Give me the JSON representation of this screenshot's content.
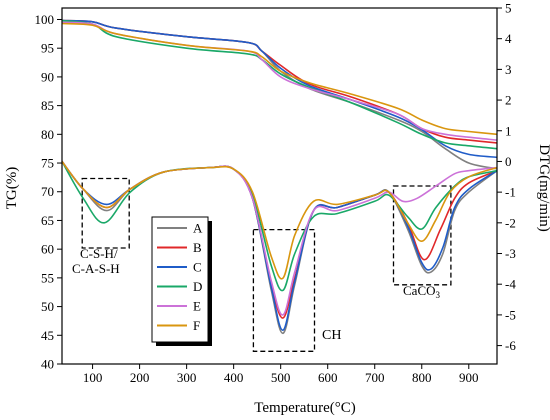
{
  "chart_data": {
    "type": "line",
    "xlabel": "Temperature(°C)",
    "ylabel_left": "TG(%)",
    "ylabel_right": "DTG(mg/min)",
    "xlim": [
      35,
      960
    ],
    "ylim_left": [
      40,
      102
    ],
    "ylim_right": [
      -6.6,
      5
    ],
    "x_ticks": [
      100,
      200,
      300,
      400,
      500,
      600,
      700,
      800,
      900
    ],
    "y_left_ticks": [
      40,
      45,
      50,
      55,
      60,
      65,
      70,
      75,
      80,
      85,
      90,
      95,
      100
    ],
    "y_right_ticks": [
      -6,
      -5,
      -4,
      -3,
      -2,
      -1,
      0,
      1,
      2,
      3,
      4,
      5
    ],
    "legend": {
      "placement": "lower-left-center",
      "entries": [
        "A",
        "B",
        "C",
        "D",
        "E",
        "F"
      ]
    },
    "annotations": {
      "csh": [
        "C-S-H/",
        "C-A-S-H"
      ],
      "ch": "CH",
      "caco3": "CaCO",
      "caco3_sub": "3"
    },
    "series": [
      {
        "name": "A",
        "color": "#808080",
        "tg": [
          [
            35,
            99.8
          ],
          [
            100,
            99.6
          ],
          [
            150,
            98.5
          ],
          [
            300,
            97.0
          ],
          [
            430,
            96.0
          ],
          [
            460,
            94.5
          ],
          [
            500,
            91.0
          ],
          [
            560,
            88.0
          ],
          [
            650,
            85.5
          ],
          [
            750,
            82.5
          ],
          [
            800,
            80.5
          ],
          [
            850,
            77.5
          ],
          [
            900,
            75.0
          ],
          [
            960,
            74.0
          ]
        ],
        "dtg": [
          [
            35,
            0.0
          ],
          [
            80,
            -0.9
          ],
          [
            130,
            -1.6
          ],
          [
            180,
            -0.9
          ],
          [
            250,
            -0.35
          ],
          [
            350,
            -0.2
          ],
          [
            400,
            -0.25
          ],
          [
            440,
            -1.2
          ],
          [
            480,
            -4.2
          ],
          [
            505,
            -5.6
          ],
          [
            530,
            -4.0
          ],
          [
            570,
            -1.6
          ],
          [
            620,
            -1.5
          ],
          [
            700,
            -1.1
          ],
          [
            730,
            -1.0
          ],
          [
            770,
            -2.2
          ],
          [
            800,
            -3.4
          ],
          [
            820,
            -3.6
          ],
          [
            845,
            -3.0
          ],
          [
            870,
            -1.6
          ],
          [
            900,
            -1.0
          ],
          [
            960,
            -0.3
          ]
        ]
      },
      {
        "name": "B",
        "color": "#e0282a",
        "tg": [
          [
            35,
            99.8
          ],
          [
            100,
            99.6
          ],
          [
            150,
            98.5
          ],
          [
            300,
            97.0
          ],
          [
            430,
            96.0
          ],
          [
            460,
            94.5
          ],
          [
            500,
            92.0
          ],
          [
            560,
            88.8
          ],
          [
            650,
            86.5
          ],
          [
            750,
            83.5
          ],
          [
            800,
            81.0
          ],
          [
            850,
            79.5
          ],
          [
            900,
            79.0
          ],
          [
            960,
            78.5
          ]
        ],
        "dtg": [
          [
            35,
            0.0
          ],
          [
            80,
            -0.9
          ],
          [
            130,
            -1.5
          ],
          [
            180,
            -0.9
          ],
          [
            250,
            -0.35
          ],
          [
            350,
            -0.2
          ],
          [
            400,
            -0.25
          ],
          [
            440,
            -1.2
          ],
          [
            480,
            -4.0
          ],
          [
            505,
            -5.1
          ],
          [
            530,
            -3.8
          ],
          [
            570,
            -1.6
          ],
          [
            620,
            -1.5
          ],
          [
            700,
            -1.1
          ],
          [
            730,
            -1.0
          ],
          [
            770,
            -2.0
          ],
          [
            805,
            -3.2
          ],
          [
            840,
            -2.2
          ],
          [
            870,
            -1.2
          ],
          [
            900,
            -0.7
          ],
          [
            960,
            -0.3
          ]
        ]
      },
      {
        "name": "C",
        "color": "#1f5cc8",
        "tg": [
          [
            35,
            99.8
          ],
          [
            100,
            99.6
          ],
          [
            150,
            98.5
          ],
          [
            300,
            97.0
          ],
          [
            430,
            96.0
          ],
          [
            460,
            94.5
          ],
          [
            500,
            91.5
          ],
          [
            560,
            88.5
          ],
          [
            650,
            86.0
          ],
          [
            750,
            83.0
          ],
          [
            800,
            80.8
          ],
          [
            850,
            78.0
          ],
          [
            900,
            76.5
          ],
          [
            960,
            76.0
          ]
        ],
        "dtg": [
          [
            35,
            0.0
          ],
          [
            80,
            -0.9
          ],
          [
            130,
            -1.4
          ],
          [
            180,
            -0.9
          ],
          [
            250,
            -0.35
          ],
          [
            350,
            -0.2
          ],
          [
            400,
            -0.25
          ],
          [
            440,
            -1.2
          ],
          [
            480,
            -4.1
          ],
          [
            505,
            -5.5
          ],
          [
            530,
            -3.9
          ],
          [
            570,
            -1.6
          ],
          [
            620,
            -1.5
          ],
          [
            700,
            -1.1
          ],
          [
            730,
            -1.0
          ],
          [
            770,
            -2.1
          ],
          [
            800,
            -3.3
          ],
          [
            820,
            -3.5
          ],
          [
            845,
            -2.8
          ],
          [
            870,
            -1.5
          ],
          [
            900,
            -0.9
          ],
          [
            960,
            -0.3
          ]
        ]
      },
      {
        "name": "D",
        "color": "#1aa868",
        "tg": [
          [
            35,
            99.8
          ],
          [
            100,
            99.2
          ],
          [
            150,
            97.0
          ],
          [
            300,
            95.0
          ],
          [
            430,
            94.0
          ],
          [
            460,
            93.0
          ],
          [
            500,
            90.5
          ],
          [
            560,
            88.2
          ],
          [
            650,
            85.5
          ],
          [
            750,
            82.0
          ],
          [
            800,
            80.0
          ],
          [
            850,
            78.5
          ],
          [
            900,
            78.0
          ],
          [
            960,
            77.5
          ]
        ],
        "dtg": [
          [
            35,
            0.0
          ],
          [
            80,
            -1.2
          ],
          [
            125,
            -2.0
          ],
          [
            180,
            -1.0
          ],
          [
            250,
            -0.35
          ],
          [
            350,
            -0.2
          ],
          [
            400,
            -0.25
          ],
          [
            440,
            -1.1
          ],
          [
            480,
            -3.4
          ],
          [
            505,
            -4.2
          ],
          [
            530,
            -3.0
          ],
          [
            570,
            -1.8
          ],
          [
            620,
            -1.7
          ],
          [
            700,
            -1.3
          ],
          [
            730,
            -1.1
          ],
          [
            770,
            -1.8
          ],
          [
            800,
            -2.2
          ],
          [
            830,
            -1.5
          ],
          [
            870,
            -0.8
          ],
          [
            900,
            -0.5
          ],
          [
            960,
            -0.3
          ]
        ]
      },
      {
        "name": "E",
        "color": "#cc72d8",
        "tg": [
          [
            35,
            99.5
          ],
          [
            100,
            99.2
          ],
          [
            150,
            97.5
          ],
          [
            300,
            95.5
          ],
          [
            430,
            94.5
          ],
          [
            460,
            93.0
          ],
          [
            500,
            90.0
          ],
          [
            560,
            88.0
          ],
          [
            650,
            86.0
          ],
          [
            750,
            83.5
          ],
          [
            800,
            81.0
          ],
          [
            850,
            80.0
          ],
          [
            900,
            79.5
          ],
          [
            960,
            79.0
          ]
        ],
        "dtg": [
          [
            35,
            0.0
          ],
          [
            80,
            -0.9
          ],
          [
            130,
            -1.5
          ],
          [
            180,
            -0.9
          ],
          [
            250,
            -0.35
          ],
          [
            350,
            -0.2
          ],
          [
            400,
            -0.25
          ],
          [
            440,
            -1.2
          ],
          [
            480,
            -3.9
          ],
          [
            505,
            -5.0
          ],
          [
            530,
            -3.6
          ],
          [
            570,
            -1.6
          ],
          [
            620,
            -1.6
          ],
          [
            700,
            -1.2
          ],
          [
            730,
            -1.0
          ],
          [
            760,
            -1.3
          ],
          [
            790,
            -1.2
          ],
          [
            830,
            -0.8
          ],
          [
            870,
            -0.4
          ],
          [
            900,
            -0.3
          ],
          [
            960,
            -0.2
          ]
        ]
      },
      {
        "name": "F",
        "color": "#d9960f",
        "tg": [
          [
            35,
            99.3
          ],
          [
            100,
            99.0
          ],
          [
            150,
            97.5
          ],
          [
            300,
            95.5
          ],
          [
            430,
            94.5
          ],
          [
            460,
            93.5
          ],
          [
            500,
            91.0
          ],
          [
            560,
            89.0
          ],
          [
            650,
            87.0
          ],
          [
            750,
            84.5
          ],
          [
            800,
            82.5
          ],
          [
            850,
            81.0
          ],
          [
            900,
            80.5
          ],
          [
            960,
            80.0
          ]
        ],
        "dtg": [
          [
            35,
            0.0
          ],
          [
            80,
            -0.9
          ],
          [
            130,
            -1.5
          ],
          [
            180,
            -0.9
          ],
          [
            250,
            -0.35
          ],
          [
            350,
            -0.2
          ],
          [
            400,
            -0.25
          ],
          [
            440,
            -1.0
          ],
          [
            480,
            -3.1
          ],
          [
            505,
            -3.8
          ],
          [
            530,
            -2.4
          ],
          [
            570,
            -1.3
          ],
          [
            620,
            -1.4
          ],
          [
            700,
            -1.1
          ],
          [
            730,
            -1.0
          ],
          [
            770,
            -2.0
          ],
          [
            800,
            -2.6
          ],
          [
            830,
            -1.9
          ],
          [
            860,
            -1.0
          ],
          [
            900,
            -0.5
          ],
          [
            960,
            -0.2
          ]
        ]
      }
    ]
  }
}
